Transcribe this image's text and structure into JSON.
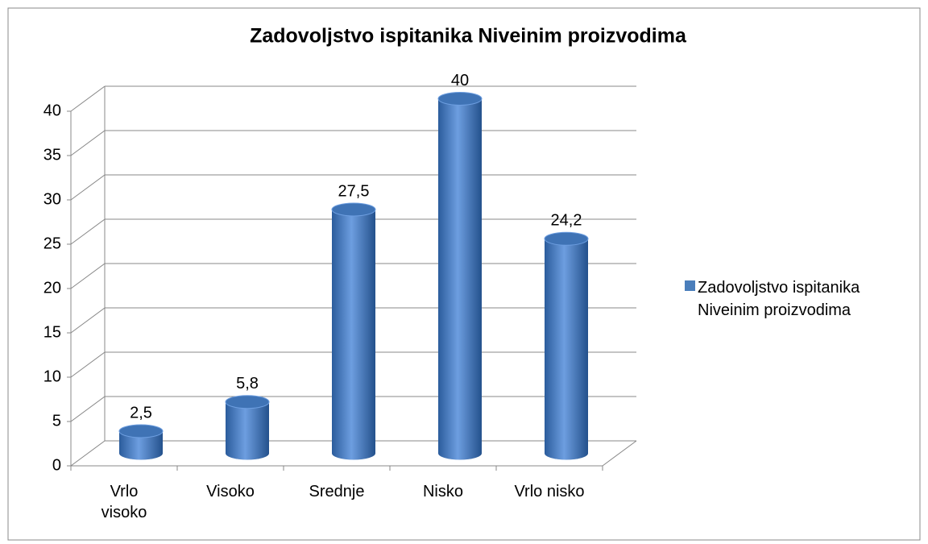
{
  "chart_data": {
    "type": "bar3d",
    "title": "Zadovoljstvo ispitanika Niveinim proizvodima",
    "categories": [
      "Vrlo visoko",
      "Visoko",
      "Srednje",
      "Nisko",
      "Vrlo nisko"
    ],
    "series": [
      {
        "name": "Zadovoljstvo ispitanika Niveinim proizvodima",
        "color": "#4a7ebb",
        "values": [
          2.5,
          5.8,
          27.5,
          40,
          24.2
        ],
        "value_labels": [
          "2,5",
          "5,8",
          "27,5",
          "40",
          "24,2"
        ]
      }
    ],
    "ylim": [
      0,
      40
    ],
    "yticks": [
      0,
      5,
      10,
      15,
      20,
      25,
      30,
      35,
      40
    ],
    "grid": true,
    "legend": "right"
  }
}
